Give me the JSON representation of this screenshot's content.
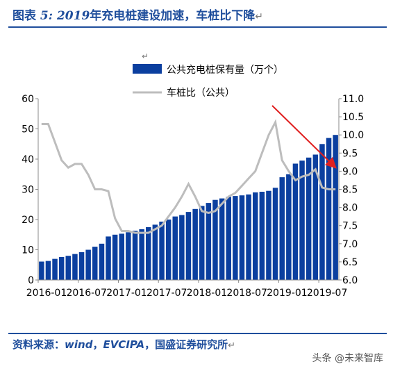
{
  "header": {
    "label": "图表",
    "number": "5:",
    "year": "2019",
    "text": "年充电桩建设加速，车桩比下降",
    "mark": "↵"
  },
  "source": {
    "label": "资料来源：",
    "text1": "wind",
    "sep1": "，",
    "text2": "EVCIPA",
    "sep2": "，",
    "text3": "国盛证券研究所",
    "mark": "↵"
  },
  "watermark": "头条 @未来智库",
  "chart_data": {
    "type": "bar+line",
    "legend": [
      "公共充电桩保有量（万个）",
      "车桩比（公共）"
    ],
    "legend_marks": [
      "↵",
      "↵"
    ],
    "x": [
      "2016-01",
      "2016-02",
      "2016-03",
      "2016-04",
      "2016-05",
      "2016-06",
      "2016-07",
      "2016-08",
      "2016-09",
      "2016-10",
      "2016-11",
      "2016-12",
      "2017-01",
      "2017-02",
      "2017-03",
      "2017-04",
      "2017-05",
      "2017-06",
      "2017-07",
      "2017-08",
      "2017-09",
      "2017-10",
      "2017-11",
      "2017-12",
      "2018-01",
      "2018-02",
      "2018-03",
      "2018-04",
      "2018-05",
      "2018-06",
      "2018-07",
      "2018-08",
      "2018-09",
      "2018-10",
      "2018-11",
      "2018-12",
      "2019-01",
      "2019-02",
      "2019-03",
      "2019-04",
      "2019-05",
      "2019-06",
      "2019-07",
      "2019-08",
      "2019-09"
    ],
    "x_tick_labels": [
      "2016-01",
      "2016-07",
      "2017-01",
      "2017-07",
      "2018-01",
      "2018-07",
      "2019-01",
      "2019-07"
    ],
    "series": [
      {
        "name": "公共充电桩保有量（万个）",
        "axis": "left",
        "color": "#0b3f9f",
        "values": [
          6.1,
          6.3,
          7.0,
          7.6,
          8.0,
          8.6,
          9.2,
          10.0,
          11.0,
          12.0,
          14.4,
          15.0,
          15.3,
          15.8,
          16.3,
          16.8,
          17.5,
          18.3,
          19.3,
          20.0,
          21.0,
          21.5,
          22.5,
          23.5,
          24.5,
          25.5,
          26.5,
          27.0,
          27.5,
          27.8,
          28.0,
          28.3,
          29.0,
          29.2,
          29.5,
          30.5,
          34.0,
          35.0,
          38.5,
          39.5,
          40.5,
          41.5,
          45.0,
          47.0,
          48.0
        ]
      },
      {
        "name": "车桩比（公共）",
        "axis": "right",
        "color": "#bdbdbd",
        "values": [
          10.3,
          10.3,
          9.8,
          9.3,
          9.1,
          9.2,
          9.2,
          8.9,
          8.5,
          8.5,
          8.45,
          7.7,
          7.35,
          7.35,
          7.3,
          7.3,
          7.3,
          7.4,
          7.5,
          7.75,
          8.0,
          8.3,
          8.65,
          8.3,
          7.9,
          7.85,
          7.9,
          8.1,
          8.3,
          8.4,
          8.6,
          8.8,
          9.0,
          9.5,
          10.0,
          10.35,
          9.3,
          9.0,
          8.75,
          8.85,
          8.9,
          9.05,
          8.55,
          8.5,
          8.5
        ]
      }
    ],
    "y_left": {
      "min": 0,
      "max": 60,
      "ticks": [
        "0",
        "10",
        "20",
        "30",
        "40",
        "50",
        "60"
      ]
    },
    "y_right": {
      "min": 6.0,
      "max": 11.0,
      "ticks": [
        "6.0",
        "6.5",
        "7.0",
        "7.5",
        "8.0",
        "8.5",
        "9.0",
        "9.5",
        "10.0",
        "10.5",
        "11.0"
      ]
    },
    "grid": false,
    "annotation": {
      "type": "arrow",
      "color": "#e02020",
      "direction": "down-right"
    }
  }
}
